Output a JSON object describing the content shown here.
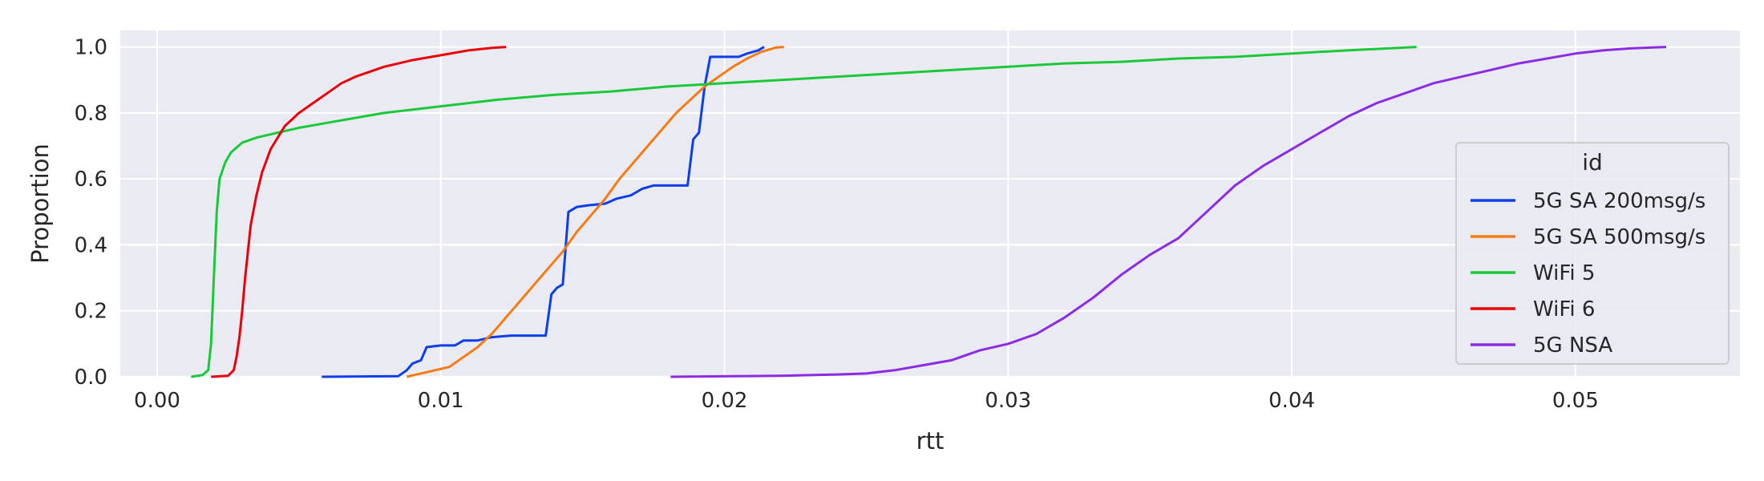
{
  "chart_data": {
    "type": "line",
    "subtype": "ecdf",
    "xlabel": "rtt",
    "ylabel": "Proportion",
    "xlim": [
      -0.0013,
      0.0558
    ],
    "ylim": [
      0,
      1.05
    ],
    "xticks": [
      0.0,
      0.01,
      0.02,
      0.03,
      0.04,
      0.05
    ],
    "xtick_labels": [
      "0.00",
      "0.01",
      "0.02",
      "0.03",
      "0.04",
      "0.05"
    ],
    "yticks": [
      0.0,
      0.2,
      0.4,
      0.6,
      0.8,
      1.0
    ],
    "ytick_labels": [
      "0.0",
      "0.2",
      "0.4",
      "0.6",
      "0.8",
      "1.0"
    ],
    "grid": true,
    "background": "#eaeaf2",
    "legend": {
      "title": "id",
      "placement": "lower-right"
    },
    "series": [
      {
        "name": "5G SA 200msg/s",
        "color": "#0d3ee8",
        "points": [
          [
            0.0058,
            0.0
          ],
          [
            0.0085,
            0.002
          ],
          [
            0.0088,
            0.02
          ],
          [
            0.009,
            0.04
          ],
          [
            0.0093,
            0.05
          ],
          [
            0.0095,
            0.09
          ],
          [
            0.01,
            0.095
          ],
          [
            0.0105,
            0.095
          ],
          [
            0.0108,
            0.11
          ],
          [
            0.0113,
            0.11
          ],
          [
            0.0118,
            0.12
          ],
          [
            0.0125,
            0.125
          ],
          [
            0.0137,
            0.125
          ],
          [
            0.0139,
            0.25
          ],
          [
            0.0141,
            0.27
          ],
          [
            0.0143,
            0.28
          ],
          [
            0.0145,
            0.5
          ],
          [
            0.0148,
            0.515
          ],
          [
            0.0152,
            0.52
          ],
          [
            0.0158,
            0.525
          ],
          [
            0.0162,
            0.54
          ],
          [
            0.0167,
            0.55
          ],
          [
            0.0171,
            0.57
          ],
          [
            0.0175,
            0.58
          ],
          [
            0.0187,
            0.58
          ],
          [
            0.0189,
            0.72
          ],
          [
            0.0191,
            0.74
          ],
          [
            0.0193,
            0.88
          ],
          [
            0.0195,
            0.97
          ],
          [
            0.0205,
            0.97
          ],
          [
            0.0208,
            0.98
          ],
          [
            0.0212,
            0.99
          ],
          [
            0.0214,
            1.0
          ]
        ]
      },
      {
        "name": "5G SA 500msg/s",
        "color": "#f57c14",
        "points": [
          [
            0.0088,
            0.0
          ],
          [
            0.0093,
            0.01
          ],
          [
            0.0098,
            0.02
          ],
          [
            0.0103,
            0.03
          ],
          [
            0.0108,
            0.06
          ],
          [
            0.0113,
            0.09
          ],
          [
            0.0118,
            0.13
          ],
          [
            0.0123,
            0.18
          ],
          [
            0.0128,
            0.23
          ],
          [
            0.0133,
            0.28
          ],
          [
            0.0138,
            0.33
          ],
          [
            0.0143,
            0.38
          ],
          [
            0.0148,
            0.44
          ],
          [
            0.0153,
            0.49
          ],
          [
            0.0158,
            0.54
          ],
          [
            0.0163,
            0.6
          ],
          [
            0.0168,
            0.65
          ],
          [
            0.0173,
            0.7
          ],
          [
            0.0178,
            0.75
          ],
          [
            0.0183,
            0.8
          ],
          [
            0.0188,
            0.84
          ],
          [
            0.0193,
            0.88
          ],
          [
            0.0198,
            0.91
          ],
          [
            0.0203,
            0.94
          ],
          [
            0.0208,
            0.965
          ],
          [
            0.0213,
            0.985
          ],
          [
            0.0218,
            0.998
          ],
          [
            0.0221,
            1.0
          ]
        ]
      },
      {
        "name": "WiFi 5",
        "color": "#1ac938",
        "points": [
          [
            0.0012,
            0.0
          ],
          [
            0.0016,
            0.005
          ],
          [
            0.0018,
            0.02
          ],
          [
            0.0019,
            0.1
          ],
          [
            0.002,
            0.3
          ],
          [
            0.0021,
            0.5
          ],
          [
            0.0022,
            0.6
          ],
          [
            0.0024,
            0.65
          ],
          [
            0.0026,
            0.68
          ],
          [
            0.003,
            0.71
          ],
          [
            0.0035,
            0.725
          ],
          [
            0.004,
            0.735
          ],
          [
            0.005,
            0.755
          ],
          [
            0.006,
            0.77
          ],
          [
            0.007,
            0.785
          ],
          [
            0.008,
            0.8
          ],
          [
            0.01,
            0.82
          ],
          [
            0.012,
            0.84
          ],
          [
            0.014,
            0.855
          ],
          [
            0.016,
            0.865
          ],
          [
            0.018,
            0.88
          ],
          [
            0.02,
            0.89
          ],
          [
            0.022,
            0.9
          ],
          [
            0.024,
            0.91
          ],
          [
            0.026,
            0.92
          ],
          [
            0.028,
            0.93
          ],
          [
            0.03,
            0.94
          ],
          [
            0.032,
            0.95
          ],
          [
            0.034,
            0.955
          ],
          [
            0.036,
            0.965
          ],
          [
            0.038,
            0.97
          ],
          [
            0.04,
            0.98
          ],
          [
            0.042,
            0.99
          ],
          [
            0.0444,
            1.0
          ]
        ]
      },
      {
        "name": "WiFi 6",
        "color": "#e8000b",
        "points": [
          [
            0.0019,
            0.0
          ],
          [
            0.0025,
            0.003
          ],
          [
            0.0027,
            0.02
          ],
          [
            0.0028,
            0.06
          ],
          [
            0.0029,
            0.12
          ],
          [
            0.003,
            0.2
          ],
          [
            0.0031,
            0.3
          ],
          [
            0.0032,
            0.38
          ],
          [
            0.0033,
            0.46
          ],
          [
            0.0035,
            0.55
          ],
          [
            0.0037,
            0.62
          ],
          [
            0.004,
            0.69
          ],
          [
            0.0045,
            0.76
          ],
          [
            0.005,
            0.8
          ],
          [
            0.0055,
            0.83
          ],
          [
            0.006,
            0.86
          ],
          [
            0.0065,
            0.89
          ],
          [
            0.007,
            0.91
          ],
          [
            0.008,
            0.94
          ],
          [
            0.009,
            0.96
          ],
          [
            0.01,
            0.975
          ],
          [
            0.011,
            0.99
          ],
          [
            0.0118,
            0.997
          ],
          [
            0.0123,
            1.0
          ]
        ]
      },
      {
        "name": "5G NSA",
        "color": "#8b2be2",
        "points": [
          [
            0.0181,
            0.0
          ],
          [
            0.022,
            0.003
          ],
          [
            0.024,
            0.007
          ],
          [
            0.025,
            0.01
          ],
          [
            0.026,
            0.02
          ],
          [
            0.027,
            0.035
          ],
          [
            0.028,
            0.05
          ],
          [
            0.029,
            0.08
          ],
          [
            0.03,
            0.1
          ],
          [
            0.031,
            0.13
          ],
          [
            0.032,
            0.18
          ],
          [
            0.033,
            0.24
          ],
          [
            0.034,
            0.31
          ],
          [
            0.035,
            0.37
          ],
          [
            0.036,
            0.42
          ],
          [
            0.037,
            0.5
          ],
          [
            0.038,
            0.58
          ],
          [
            0.039,
            0.64
          ],
          [
            0.04,
            0.69
          ],
          [
            0.041,
            0.74
          ],
          [
            0.042,
            0.79
          ],
          [
            0.043,
            0.83
          ],
          [
            0.044,
            0.86
          ],
          [
            0.045,
            0.89
          ],
          [
            0.046,
            0.91
          ],
          [
            0.047,
            0.93
          ],
          [
            0.048,
            0.95
          ],
          [
            0.049,
            0.965
          ],
          [
            0.05,
            0.98
          ],
          [
            0.051,
            0.99
          ],
          [
            0.052,
            0.996
          ],
          [
            0.0532,
            1.0
          ]
        ]
      }
    ]
  }
}
